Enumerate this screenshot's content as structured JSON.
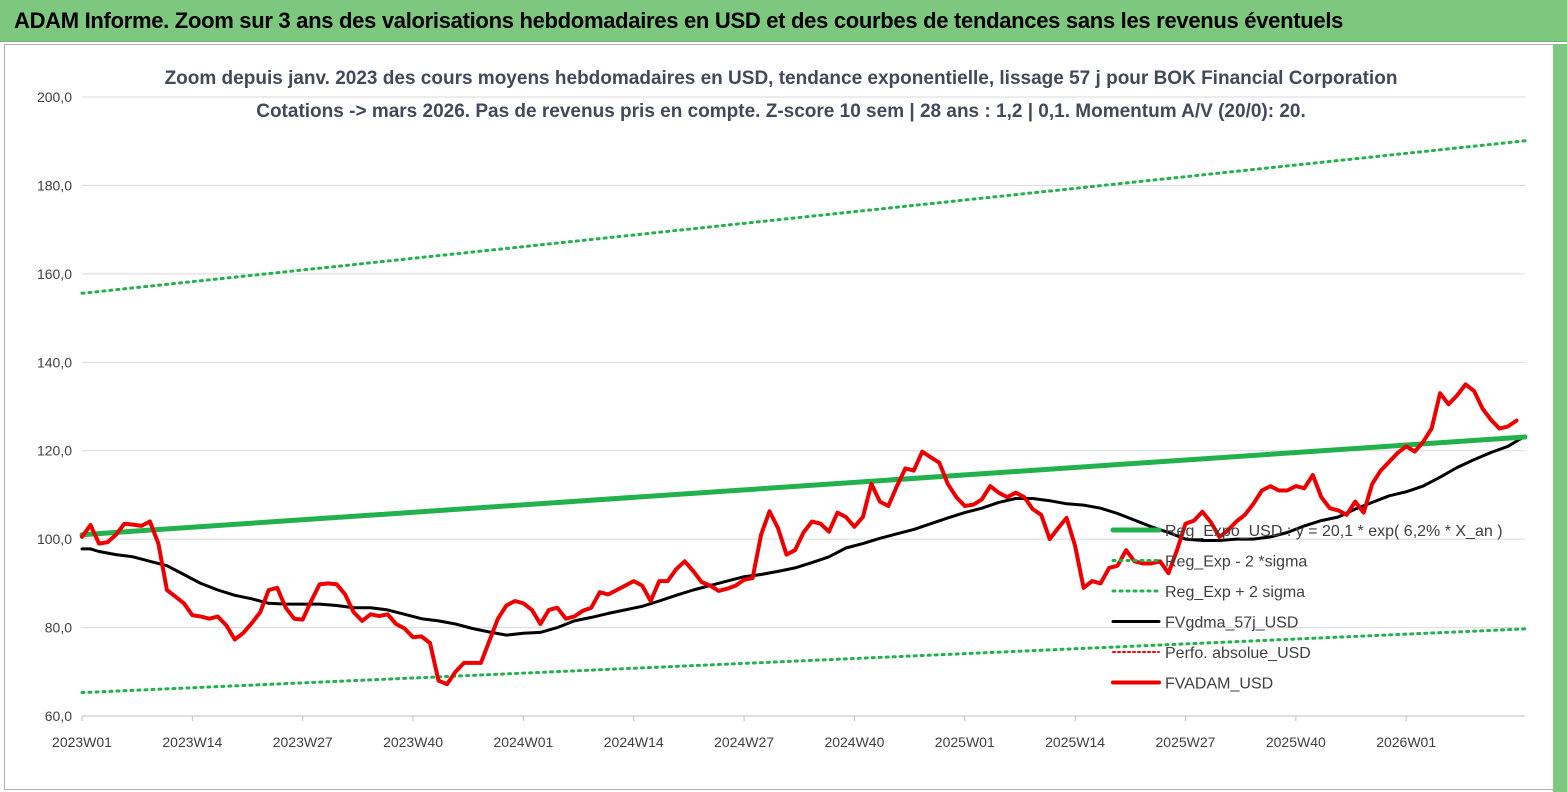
{
  "banner": {
    "title": "ADAM Informe. Zoom sur 3 ans des valorisations hebdomadaires en USD et des courbes de tendances sans les revenus éventuels"
  },
  "colors": {
    "banner_bg": "#7dc77f",
    "reg_expo": "#22b14c",
    "sigma": "#22b14c",
    "fvgdma": "#000000",
    "perfo": "#ff0000",
    "fvadam": "#ee0000",
    "grid": "#d9d9d9"
  },
  "chart_data": {
    "type": "line",
    "title_line1": "Zoom depuis janv. 2023 des cours moyens hebdomadaires en USD, tendance exponentielle, lissage 57 j pour BOK Financial Corporation",
    "title_line2": "Cotations -> mars 2026. Pas de revenus pris en compte. Z-score 10 sem  | 28 ans : 1,2 | 0,1. Momentum A/V (20/0): 20.",
    "ylim": [
      60,
      200
    ],
    "y_ticks": [
      "60,0",
      "80,0",
      "100,0",
      "120,0",
      "140,0",
      "160,0",
      "180,0",
      "200,0"
    ],
    "x_ticks": [
      "2023W01",
      "2023W14",
      "2023W27",
      "2023W40",
      "2024W01",
      "2024W14",
      "2024W27",
      "2024W40",
      "2025W01",
      "2025W14",
      "2025W27",
      "2025W40",
      "2026W01"
    ],
    "x_week_range": [
      0,
      170
    ],
    "grid": "horizontal",
    "legend_position": "right",
    "series": [
      {
        "name": "Reg_Expo_USD : y = 20,1 * exp( 6,2% *  X_an )",
        "style": "solid-thick",
        "points": [
          [
            0,
            101.0
          ],
          [
            170,
            123.1
          ]
        ]
      },
      {
        "name": "Reg_Exp - 2 *sigma",
        "style": "dotted",
        "points": [
          [
            0,
            65.3
          ],
          [
            170,
            79.7
          ]
        ]
      },
      {
        "name": "Reg_Exp + 2 sigma",
        "style": "dotted",
        "points": [
          [
            0,
            155.6
          ],
          [
            170,
            190.1
          ]
        ]
      },
      {
        "name": "FVgdma_57j_USD",
        "style": "solid",
        "points": [
          [
            0,
            97.8
          ],
          [
            1,
            97.8
          ],
          [
            2,
            97.2
          ],
          [
            4,
            96.5
          ],
          [
            6,
            96.0
          ],
          [
            8,
            95.0
          ],
          [
            10,
            94.0
          ],
          [
            12,
            92.0
          ],
          [
            14,
            90.0
          ],
          [
            16,
            88.5
          ],
          [
            18,
            87.3
          ],
          [
            20,
            86.5
          ],
          [
            22,
            85.5
          ],
          [
            24,
            85.3
          ],
          [
            26,
            85.3
          ],
          [
            28,
            85.3
          ],
          [
            30,
            85.0
          ],
          [
            32,
            84.5
          ],
          [
            34,
            84.5
          ],
          [
            36,
            84.0
          ],
          [
            38,
            83.0
          ],
          [
            40,
            82.0
          ],
          [
            42,
            81.5
          ],
          [
            44,
            80.8
          ],
          [
            46,
            79.8
          ],
          [
            48,
            79.0
          ],
          [
            50,
            78.3
          ],
          [
            52,
            78.7
          ],
          [
            54,
            78.9
          ],
          [
            56,
            80.0
          ],
          [
            58,
            81.5
          ],
          [
            60,
            82.3
          ],
          [
            62,
            83.2
          ],
          [
            64,
            84.0
          ],
          [
            66,
            84.8
          ],
          [
            68,
            86.0
          ],
          [
            70,
            87.3
          ],
          [
            72,
            88.5
          ],
          [
            74,
            89.5
          ],
          [
            76,
            90.5
          ],
          [
            78,
            91.5
          ],
          [
            80,
            92.0
          ],
          [
            82,
            92.7
          ],
          [
            84,
            93.5
          ],
          [
            86,
            94.7
          ],
          [
            88,
            96.0
          ],
          [
            90,
            98.0
          ],
          [
            92,
            99.0
          ],
          [
            94,
            100.2
          ],
          [
            96,
            101.2
          ],
          [
            98,
            102.2
          ],
          [
            100,
            103.5
          ],
          [
            102,
            104.8
          ],
          [
            104,
            106.0
          ],
          [
            106,
            107.0
          ],
          [
            108,
            108.3
          ],
          [
            110,
            109.2
          ],
          [
            112,
            109.2
          ],
          [
            114,
            108.7
          ],
          [
            116,
            108.0
          ],
          [
            118,
            107.7
          ],
          [
            120,
            107.0
          ],
          [
            122,
            105.8
          ],
          [
            124,
            104.3
          ],
          [
            126,
            102.8
          ],
          [
            128,
            101.5
          ],
          [
            130,
            100.0
          ],
          [
            132,
            99.7
          ],
          [
            134,
            99.7
          ],
          [
            136,
            100.0
          ],
          [
            138,
            100.0
          ],
          [
            140,
            100.5
          ],
          [
            142,
            101.5
          ],
          [
            144,
            103.0
          ],
          [
            146,
            104.2
          ],
          [
            148,
            105.0
          ],
          [
            150,
            106.8
          ],
          [
            152,
            108.3
          ],
          [
            154,
            109.8
          ],
          [
            156,
            110.7
          ],
          [
            158,
            112.0
          ],
          [
            160,
            114.0
          ],
          [
            162,
            116.2
          ],
          [
            164,
            118.0
          ],
          [
            166,
            119.6
          ],
          [
            168,
            121.0
          ],
          [
            170,
            123.3
          ],
          [
            172,
            124.3
          ],
          [
            174,
            125.5
          ],
          [
            176,
            125.5
          ],
          [
            178,
            125.5
          ],
          [
            180,
            125.5
          ]
        ]
      },
      {
        "name": "Perfo. absolue_USD",
        "style": "dotted-red",
        "points": []
      },
      {
        "name": "FVADAM_USD",
        "style": "solid-thick",
        "points": [
          [
            0,
            100.5
          ],
          [
            1,
            103.2
          ],
          [
            2,
            99.0
          ],
          [
            3,
            99.3
          ],
          [
            4,
            101.0
          ],
          [
            5,
            103.5
          ],
          [
            6,
            103.3
          ],
          [
            7,
            103.0
          ],
          [
            8,
            104.0
          ],
          [
            9,
            99.0
          ],
          [
            10,
            88.5
          ],
          [
            11,
            87.0
          ],
          [
            12,
            85.5
          ],
          [
            13,
            82.8
          ],
          [
            14,
            82.5
          ],
          [
            15,
            82.0
          ],
          [
            16,
            82.5
          ],
          [
            17,
            80.5
          ],
          [
            18,
            77.3
          ],
          [
            19,
            78.8
          ],
          [
            20,
            81.0
          ],
          [
            21,
            83.5
          ],
          [
            22,
            88.5
          ],
          [
            23,
            89.0
          ],
          [
            24,
            84.5
          ],
          [
            25,
            82.0
          ],
          [
            26,
            81.8
          ],
          [
            27,
            86.0
          ],
          [
            28,
            89.8
          ],
          [
            29,
            90.0
          ],
          [
            30,
            89.8
          ],
          [
            31,
            87.5
          ],
          [
            32,
            83.5
          ],
          [
            33,
            81.5
          ],
          [
            34,
            83.0
          ],
          [
            35,
            82.6
          ],
          [
            36,
            83.0
          ],
          [
            37,
            80.8
          ],
          [
            38,
            79.8
          ],
          [
            39,
            77.8
          ],
          [
            40,
            78.0
          ],
          [
            41,
            76.5
          ],
          [
            42,
            68.0
          ],
          [
            43,
            67.2
          ],
          [
            44,
            70.0
          ],
          [
            45,
            72.0
          ],
          [
            46,
            72.0
          ],
          [
            47,
            72.0
          ],
          [
            48,
            77.0
          ],
          [
            49,
            82.0
          ],
          [
            50,
            85.0
          ],
          [
            51,
            86.0
          ],
          [
            52,
            85.5
          ],
          [
            53,
            84.0
          ],
          [
            54,
            80.8
          ],
          [
            55,
            84.0
          ],
          [
            56,
            84.5
          ],
          [
            57,
            82.0
          ],
          [
            58,
            82.5
          ],
          [
            59,
            83.8
          ],
          [
            60,
            84.5
          ],
          [
            61,
            88.0
          ],
          [
            62,
            87.5
          ],
          [
            63,
            88.5
          ],
          [
            64,
            89.5
          ],
          [
            65,
            90.5
          ],
          [
            66,
            89.5
          ],
          [
            67,
            86.0
          ],
          [
            68,
            90.5
          ],
          [
            69,
            90.5
          ],
          [
            70,
            93.2
          ],
          [
            71,
            95.0
          ],
          [
            72,
            92.8
          ],
          [
            73,
            90.3
          ],
          [
            74,
            89.5
          ],
          [
            75,
            88.3
          ],
          [
            76,
            88.8
          ],
          [
            77,
            89.5
          ],
          [
            78,
            90.8
          ],
          [
            79,
            91.2
          ],
          [
            80,
            101.0
          ],
          [
            81,
            106.3
          ],
          [
            82,
            102.5
          ],
          [
            83,
            96.5
          ],
          [
            84,
            97.5
          ],
          [
            85,
            101.5
          ],
          [
            86,
            104.0
          ],
          [
            87,
            103.5
          ],
          [
            88,
            101.7
          ],
          [
            89,
            106.0
          ],
          [
            90,
            105.0
          ],
          [
            91,
            102.8
          ],
          [
            92,
            105.0
          ],
          [
            93,
            112.5
          ],
          [
            94,
            108.5
          ],
          [
            95,
            107.5
          ],
          [
            96,
            112.0
          ],
          [
            97,
            116.0
          ],
          [
            98,
            115.5
          ],
          [
            99,
            119.8
          ],
          [
            100,
            118.5
          ],
          [
            101,
            117.3
          ],
          [
            102,
            112.5
          ],
          [
            103,
            109.5
          ],
          [
            104,
            107.5
          ],
          [
            105,
            107.8
          ],
          [
            106,
            109.0
          ],
          [
            107,
            112.0
          ],
          [
            108,
            110.5
          ],
          [
            109,
            109.5
          ],
          [
            110,
            110.5
          ],
          [
            111,
            109.5
          ],
          [
            112,
            106.8
          ],
          [
            113,
            105.5
          ],
          [
            114,
            100.0
          ],
          [
            115,
            102.5
          ],
          [
            116,
            104.8
          ],
          [
            117,
            98.5
          ],
          [
            118,
            89.0
          ],
          [
            119,
            90.5
          ],
          [
            120,
            90.0
          ],
          [
            121,
            93.5
          ],
          [
            122,
            94.0
          ],
          [
            123,
            97.5
          ],
          [
            124,
            95.0
          ],
          [
            125,
            94.5
          ],
          [
            126,
            94.5
          ],
          [
            127,
            95.0
          ],
          [
            128,
            92.3
          ],
          [
            129,
            97.5
          ],
          [
            130,
            103.5
          ],
          [
            131,
            104.2
          ],
          [
            132,
            106.2
          ],
          [
            133,
            103.8
          ],
          [
            134,
            100.5
          ],
          [
            135,
            102.0
          ],
          [
            136,
            104.0
          ],
          [
            137,
            105.5
          ],
          [
            138,
            108.0
          ],
          [
            139,
            111.0
          ],
          [
            140,
            112.0
          ],
          [
            141,
            111.0
          ],
          [
            142,
            111.0
          ],
          [
            143,
            112.0
          ],
          [
            144,
            111.5
          ],
          [
            145,
            114.5
          ],
          [
            146,
            109.5
          ],
          [
            147,
            107.0
          ],
          [
            148,
            106.5
          ],
          [
            149,
            105.5
          ],
          [
            150,
            108.5
          ],
          [
            151,
            106.0
          ],
          [
            152,
            112.5
          ],
          [
            153,
            115.5
          ],
          [
            154,
            117.5
          ],
          [
            155,
            119.5
          ],
          [
            156,
            121.0
          ],
          [
            157,
            119.8
          ],
          [
            158,
            122.0
          ],
          [
            159,
            125.0
          ],
          [
            160,
            133.0
          ],
          [
            161,
            130.5
          ],
          [
            162,
            132.5
          ],
          [
            163,
            135.0
          ],
          [
            164,
            133.5
          ],
          [
            165,
            129.5
          ],
          [
            166,
            127.0
          ],
          [
            167,
            125.0
          ],
          [
            168,
            125.5
          ],
          [
            169,
            126.8
          ]
        ]
      }
    ]
  }
}
